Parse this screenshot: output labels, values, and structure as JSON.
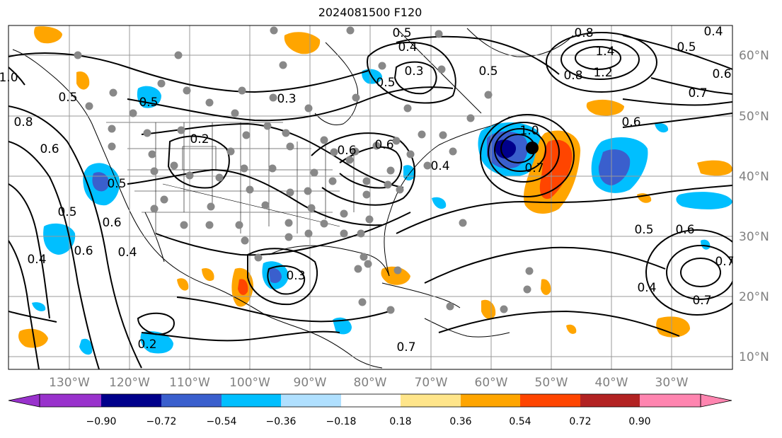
{
  "title": "2024081500 F120",
  "lon_labels": [
    "130°W",
    "120°W",
    "110°W",
    "100°W",
    "90°W",
    "80°W",
    "70°W",
    "60°W",
    "50°W",
    "40°W",
    "30°W"
  ],
  "lat_labels": [
    "60°N",
    "50°N",
    "40°N",
    "30°N",
    "20°N",
    "10°N"
  ],
  "colorbar": {
    "ticks": [
      "−0.90",
      "−0.72",
      "−0.54",
      "−0.36",
      "−0.18",
      "0.18",
      "0.36",
      "0.54",
      "0.72",
      "0.90"
    ],
    "colors": [
      "#9932cc",
      "#00008b",
      "#3a5fcd",
      "#00bfff",
      "#b0e0ff",
      "#ffffff",
      "#ffe58a",
      "#ffa500",
      "#ff4500",
      "#b22222",
      "#ff85b0"
    ]
  },
  "contour_labels": [
    "0.5",
    "0.4",
    "0.3",
    "0.8",
    "1.4",
    "1.2",
    "0.7",
    "0.6",
    "0.5",
    "0.4",
    "0.6",
    "0.8",
    "0.5",
    "0.5",
    "0.3",
    "0.2",
    "0.6",
    "0.6",
    "0.4",
    "0.7",
    "1.0",
    "1.0",
    "0.8",
    "0.6",
    "0.5",
    "0.5",
    "0.6",
    "0.6",
    "0.4",
    "0.3",
    "0.4",
    "0.4",
    "0.7",
    "0.7",
    "0.2",
    "0.7",
    "0.6",
    "0.5",
    "0.5",
    "0.5"
  ],
  "colors": {
    "grid": "#999999",
    "axis_label": "#808080",
    "station": "#888888",
    "contour": "#000000"
  }
}
